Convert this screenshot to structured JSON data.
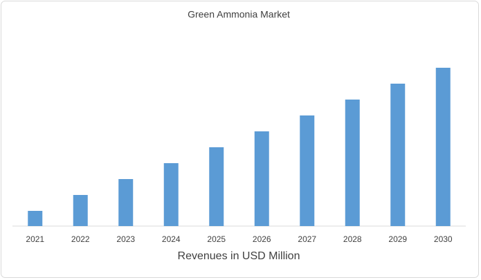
{
  "chart_data": {
    "type": "bar",
    "title": "Green Ammonia Market",
    "x_label": "Revenues in USD Million",
    "categories": [
      "2021",
      "2022",
      "2023",
      "2024",
      "2025",
      "2026",
      "2027",
      "2028",
      "2029",
      "2030"
    ],
    "values": [
      22,
      45,
      68,
      91,
      114,
      137,
      160,
      183,
      206,
      229
    ],
    "color": "#5b9bd5"
  }
}
